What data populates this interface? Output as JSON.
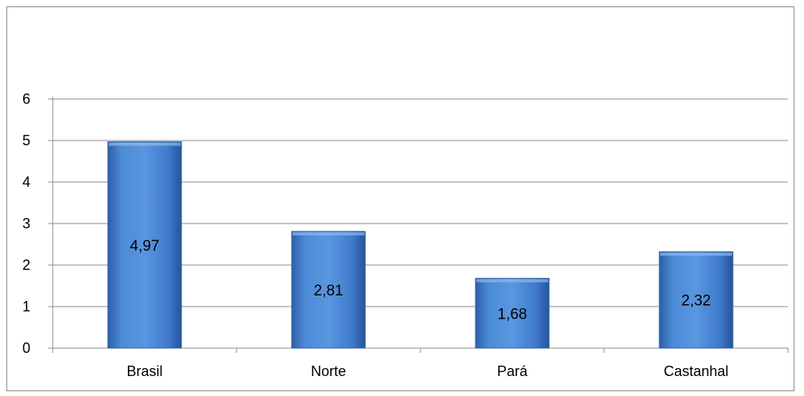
{
  "chart_data": {
    "type": "bar",
    "title": "",
    "xlabel": "",
    "ylabel": "",
    "categories": [
      "Brasil",
      "Norte",
      "Pará",
      "Castanhal"
    ],
    "values": [
      4.97,
      2.81,
      1.68,
      2.32
    ],
    "value_labels": [
      "4,97",
      "2,81",
      "1,68",
      "2,32"
    ],
    "ylim": [
      0,
      6
    ],
    "yticks": [
      "0",
      "1",
      "2",
      "3",
      "4",
      "5",
      "6"
    ],
    "grid": true,
    "legend": "none",
    "bar_color": "#3f7fcf",
    "bar_edge_color": "#2a5ea8"
  }
}
